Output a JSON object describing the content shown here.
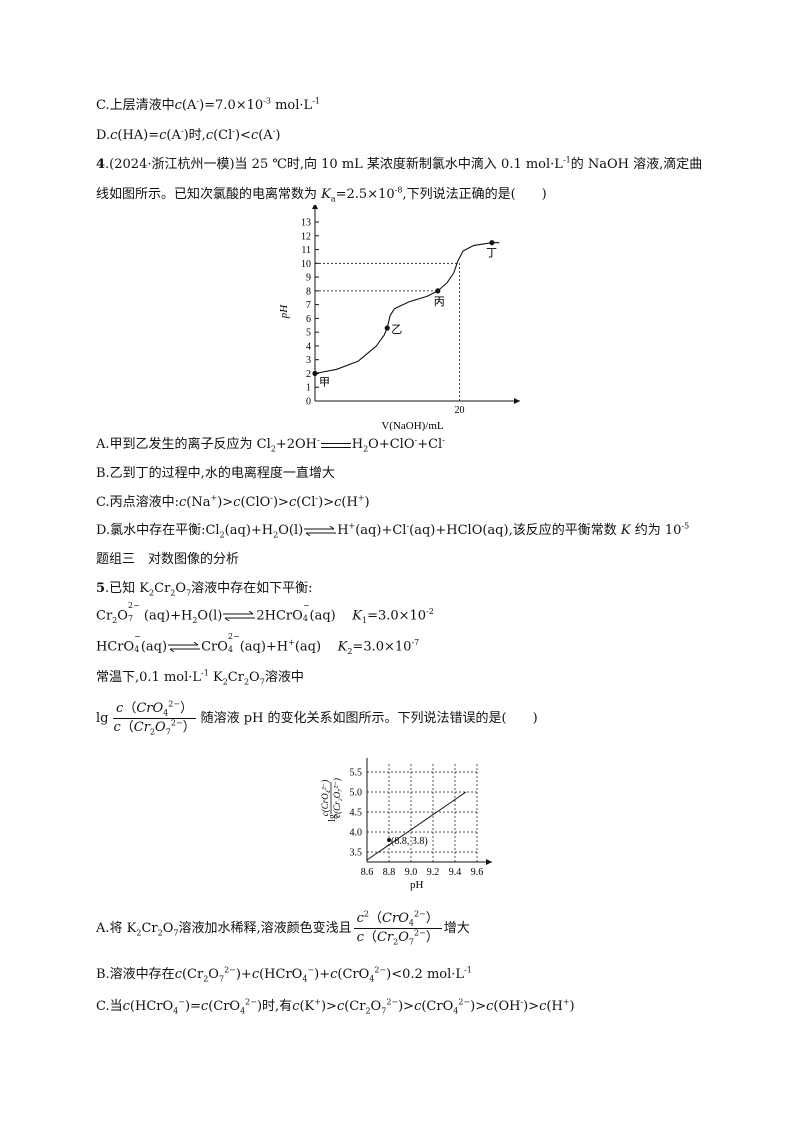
{
  "lines": {
    "l1": "C.上层清液中",
    "l1b": "=7.0×10",
    "l1c": "-3",
    "l1d": " mol·L",
    "l1e": "-1",
    "l2a": "D.",
    "l2b": "时,",
    "q4_num": "4",
    "q4_src": ".(2024·浙江杭州一模)当 25 ℃时,向 10 mL 某浓度新制氯水中滴入 0.1 mol·L",
    "q4_src2": "的 NaOH 溶液,滴定曲",
    "q4_line2": "线如图所示。已知次氯酸的电离常数为 ",
    "q4_line2b": "=2.5×10",
    "q4_line2c": "-8",
    "q4_line2d": ",下列说法正确的是(　　)",
    "a4": "A.甲到乙发生的离子反应为 Cl",
    "b4": "B.乙到丁的过程中,水的电离程度一直增大",
    "c4": "C.丙点溶液中:",
    "d4": "D.氯水中存在平衡:Cl",
    "d4b": "(aq)+H",
    "d4c": "O(l)",
    "d4d": "H",
    "d4e": "(aq)+Cl",
    "d4f": "(aq)+HClO(aq),该反应的平衡常数 ",
    "d4g": " 约为 10",
    "d4h": "-5",
    "group3": "题组三　对数图像的分析",
    "q5_num": "5",
    "q5_text": ".已知 K",
    "q5_text2": "溶液中存在如下平衡:",
    "eq1_k": "=3.0×10",
    "eq1_k_exp": "-2",
    "eq2_k": "=3.0×10",
    "eq2_k_exp": "-7",
    "q5_cond": "常温下,0.1 mol·L",
    "q5_cond2": "溶液中",
    "q5_relation": "随溶液 pH 的变化关系如图所示。下列说法错误的是(　　)",
    "a5": "A.将 K",
    "a5b": "溶液加水稀释,溶液颜色变浅且",
    "a5c": "增大",
    "b5": "B.溶液中存在",
    "b5b": "<0.2 mol·L",
    "c5": "C.当",
    "c5b": "时,有"
  },
  "chart_data": [
    {
      "type": "line",
      "xlabel": "V(NaOH)/mL",
      "ylabel": "pH",
      "x_ticks": [
        20
      ],
      "y_ticks": [
        0,
        1,
        2,
        3,
        4,
        5,
        6,
        7,
        8,
        9,
        10,
        11,
        12,
        13
      ],
      "ylim": [
        0,
        13.8
      ],
      "xlim": [
        0,
        27
      ],
      "reference_lines": [
        {
          "y": 10,
          "x_end": 20
        },
        {
          "y": 8,
          "x_end": 17
        },
        {
          "x": 20,
          "y_end": 10
        }
      ],
      "points": [
        {
          "label": "甲",
          "x": 0,
          "y": 2
        },
        {
          "label": "乙",
          "x": 10,
          "y": 5.3
        },
        {
          "label": "丙",
          "x": 17,
          "y": 8
        },
        {
          "label": "丁",
          "x": 24.5,
          "y": 11.5
        }
      ],
      "curve": [
        [
          0,
          2
        ],
        [
          3,
          2.3
        ],
        [
          6,
          2.9
        ],
        [
          8.5,
          4
        ],
        [
          9.6,
          4.8
        ],
        [
          10,
          5.3
        ],
        [
          10.4,
          6.2
        ],
        [
          11,
          6.7
        ],
        [
          13,
          7.2
        ],
        [
          15.5,
          7.6
        ],
        [
          17,
          8
        ],
        [
          18.3,
          8.6
        ],
        [
          19.2,
          9.3
        ],
        [
          19.8,
          10.2
        ],
        [
          20.5,
          10.9
        ],
        [
          22,
          11.3
        ],
        [
          24.5,
          11.5
        ],
        [
          25.5,
          11.5
        ]
      ]
    },
    {
      "type": "line",
      "xlabel": "pH",
      "x_ticks": [
        8.6,
        8.8,
        9.0,
        9.2,
        9.4,
        9.6
      ],
      "y_ticks": [
        3.5,
        4.0,
        4.5,
        5.0,
        5.5
      ],
      "xlim": [
        8.6,
        9.6
      ],
      "ylim": [
        3.25,
        5.75
      ],
      "grid": true,
      "line": [
        [
          8.6,
          3.3
        ],
        [
          9.5,
          5.0
        ]
      ],
      "annotation": {
        "text": "(8.8, 3.8)",
        "x": 8.8,
        "y": 3.8
      }
    }
  ]
}
